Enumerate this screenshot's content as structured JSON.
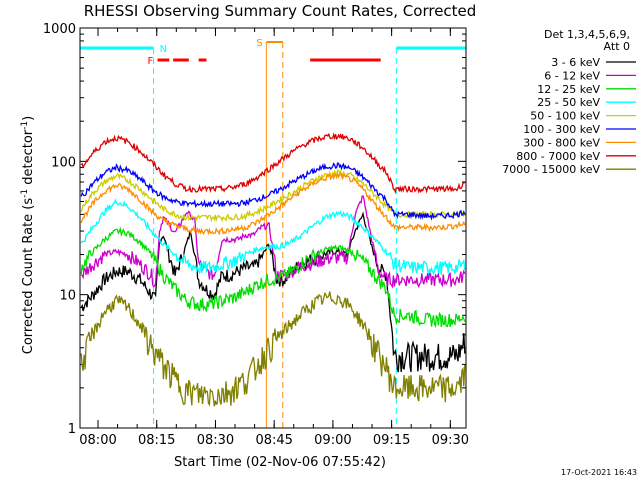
{
  "chart_data": {
    "type": "line",
    "title": "RHESSI Observing Summary Count Rates, Corrected",
    "xlabel": "Start Time (02-Nov-06 07:55:42)",
    "ylabel_main": "Corrected Count Rate (s",
    "ylabel_sup1": "-1",
    "ylabel_mid": " detector",
    "ylabel_sup2": "-1",
    "ylabel_end": ")",
    "y_scale": "log",
    "ylim": [
      1,
      1000
    ],
    "xlim_min": [
      -0.3,
      98.3
    ],
    "x_ticks": [
      {
        "min": 4.3,
        "label": "08:00"
      },
      {
        "min": 19.3,
        "label": "08:15"
      },
      {
        "min": 34.3,
        "label": "08:30"
      },
      {
        "min": 49.3,
        "label": "08:45"
      },
      {
        "min": 64.3,
        "label": "09:00"
      },
      {
        "min": 79.3,
        "label": "09:15"
      },
      {
        "min": 94.3,
        "label": "09:30"
      }
    ],
    "y_ticks": [
      {
        "v": 1,
        "label": "1"
      },
      {
        "v": 10,
        "label": "10"
      },
      {
        "v": 100,
        "label": "100"
      },
      {
        "v": 1000,
        "label": "1000"
      }
    ],
    "legend_header": [
      "Det 1,3,4,5,6,9,",
      "Att 0"
    ],
    "series": [
      {
        "name": "3 - 6 keV",
        "color": "#000000",
        "x": [
          0,
          3,
          6,
          9,
          12,
          15,
          18,
          19,
          20,
          21,
          22,
          24,
          26,
          28,
          30,
          32,
          34,
          36,
          38,
          40,
          42,
          44,
          46,
          48,
          50,
          52,
          54,
          56,
          58,
          60,
          62,
          64,
          66,
          68,
          70,
          72,
          74,
          76,
          78,
          80,
          84,
          88,
          92,
          96,
          98
        ],
        "y": [
          8,
          10,
          13,
          15,
          15,
          13,
          10,
          9,
          25,
          28,
          22,
          14,
          20,
          30,
          13,
          11,
          10,
          14,
          14,
          15,
          16,
          16,
          19,
          24,
          13,
          13,
          15,
          17,
          18,
          19,
          20,
          21,
          21,
          20,
          30,
          40,
          24,
          16,
          14,
          3.5,
          3.5,
          3.5,
          3.5,
          3.5,
          4.5
        ]
      },
      {
        "name": "6 - 12 keV",
        "color": "#cc00cc",
        "x": [
          0,
          3,
          6,
          9,
          12,
          15,
          18,
          19,
          20,
          21,
          24,
          27,
          29,
          30,
          32,
          34,
          36,
          38,
          40,
          42,
          44,
          46,
          48,
          50,
          52,
          55,
          58,
          61,
          64,
          66,
          68,
          70,
          72,
          74,
          76,
          78,
          80,
          84,
          88,
          92,
          96,
          98
        ],
        "y": [
          14,
          17,
          20,
          21,
          20,
          17,
          14,
          12,
          30,
          38,
          29,
          42,
          36,
          17,
          15,
          14,
          26,
          26,
          26,
          28,
          28,
          32,
          33,
          14,
          14,
          16,
          17,
          18,
          19,
          19,
          19,
          40,
          55,
          28,
          15,
          13,
          13,
          13,
          13,
          13,
          13,
          14
        ]
      },
      {
        "name": "12 - 25 keV",
        "color": "#00dd00",
        "x": [
          0,
          3,
          6,
          9,
          12,
          15,
          18,
          21,
          24,
          27,
          30,
          33,
          36,
          39,
          42,
          45,
          48,
          51,
          54,
          57,
          60,
          63,
          66,
          69,
          72,
          75,
          78,
          80,
          84,
          88,
          92,
          96,
          98
        ],
        "y": [
          16,
          21,
          26,
          30,
          29,
          25,
          20,
          14,
          11,
          9,
          8.5,
          8.5,
          9,
          9.5,
          10.5,
          12,
          13,
          13.5,
          15,
          18,
          20,
          22,
          22.5,
          21,
          18,
          14,
          11,
          7,
          7,
          6.5,
          6.5,
          6.5,
          7
        ]
      },
      {
        "name": "25 - 50 keV",
        "color": "#00ffff",
        "x": [
          0,
          3,
          6,
          9,
          12,
          15,
          18,
          21,
          24,
          27,
          30,
          33,
          36,
          39,
          42,
          45,
          48,
          51,
          54,
          57,
          60,
          63,
          66,
          69,
          72,
          75,
          78,
          80,
          84,
          88,
          92,
          96,
          98
        ],
        "y": [
          24,
          32,
          42,
          50,
          46,
          38,
          30,
          24,
          20,
          17,
          16,
          16,
          17,
          18,
          20,
          22,
          23,
          23,
          25,
          29,
          34,
          39,
          41,
          38,
          32,
          26,
          21,
          17,
          16,
          16,
          16,
          16,
          17
        ]
      },
      {
        "name": "50 - 100 keV",
        "color": "#cccc00",
        "x": [
          0,
          3,
          6,
          9,
          12,
          15,
          18,
          21,
          24,
          27,
          30,
          33,
          36,
          39,
          42,
          45,
          48,
          51,
          54,
          57,
          60,
          63,
          66,
          69,
          72,
          75,
          78,
          80,
          84,
          88,
          92,
          96,
          98
        ],
        "y": [
          44,
          58,
          70,
          78,
          72,
          62,
          52,
          44,
          40,
          38,
          38,
          38,
          38,
          38,
          39,
          42,
          46,
          52,
          58,
          66,
          74,
          80,
          82,
          78,
          68,
          56,
          46,
          40,
          40,
          40,
          40,
          40,
          41
        ]
      },
      {
        "name": "100 - 300 keV",
        "color": "#0000ff",
        "x": [
          0,
          3,
          6,
          9,
          12,
          15,
          18,
          21,
          24,
          27,
          30,
          33,
          36,
          39,
          42,
          45,
          48,
          51,
          54,
          57,
          60,
          63,
          66,
          69,
          72,
          75,
          78,
          80,
          84,
          88,
          92,
          96,
          98
        ],
        "y": [
          54,
          68,
          82,
          90,
          85,
          74,
          62,
          54,
          50,
          48,
          48,
          48,
          48,
          48,
          49,
          52,
          56,
          62,
          70,
          78,
          86,
          92,
          93,
          88,
          76,
          62,
          51,
          40,
          40,
          39,
          39,
          40,
          42
        ]
      },
      {
        "name": "300 - 800 keV",
        "color": "#ff8c00",
        "x": [
          0,
          3,
          6,
          9,
          12,
          15,
          18,
          21,
          24,
          27,
          30,
          33,
          36,
          39,
          42,
          45,
          48,
          51,
          54,
          57,
          60,
          63,
          66,
          69,
          72,
          75,
          78,
          80,
          84,
          88,
          92,
          96,
          98
        ],
        "y": [
          36,
          48,
          60,
          66,
          62,
          52,
          42,
          36,
          33,
          31,
          30,
          30,
          30,
          31,
          32,
          35,
          40,
          46,
          54,
          62,
          70,
          76,
          78,
          73,
          62,
          48,
          38,
          32,
          32,
          32,
          32,
          33,
          34
        ]
      },
      {
        "name": "800 - 7000 keV",
        "color": "#dd0000",
        "x": [
          0,
          3,
          6,
          9,
          12,
          15,
          18,
          21,
          24,
          27,
          30,
          33,
          36,
          39,
          42,
          45,
          48,
          51,
          54,
          57,
          60,
          63,
          66,
          69,
          72,
          75,
          78,
          80,
          84,
          88,
          92,
          96,
          98
        ],
        "y": [
          90,
          115,
          140,
          150,
          140,
          120,
          98,
          80,
          68,
          62,
          62,
          62,
          62,
          64,
          68,
          76,
          88,
          102,
          118,
          134,
          146,
          154,
          155,
          146,
          126,
          102,
          82,
          62,
          62,
          62,
          62,
          62,
          70
        ]
      },
      {
        "name": "7000 - 15000 keV",
        "color": "#808000",
        "x": [
          0,
          3,
          6,
          9,
          12,
          15,
          18,
          21,
          24,
          27,
          30,
          33,
          36,
          39,
          42,
          45,
          48,
          51,
          54,
          57,
          60,
          63,
          66,
          69,
          72,
          75,
          78,
          80,
          84,
          88,
          92,
          96,
          98
        ],
        "y": [
          3,
          5,
          7.5,
          9,
          8,
          6,
          4,
          3,
          2.3,
          1.9,
          1.8,
          1.8,
          1.8,
          2,
          2.3,
          3,
          4,
          5,
          6.2,
          7.5,
          8.8,
          9.5,
          9.4,
          8,
          6,
          4,
          2.8,
          2,
          2,
          2,
          2,
          2,
          2.5
        ]
      }
    ],
    "flags": {
      "saa_left_label": "",
      "night_label": "N",
      "flare_label": "F",
      "saa_label": "S",
      "night_bars": [
        [
          -0.3,
          18.5
        ],
        [
          80.5,
          98.3
        ]
      ],
      "flare_bars": [
        [
          19.5,
          22.5
        ],
        [
          23.5,
          27.5
        ],
        [
          30.0,
          32.0
        ],
        [
          58.5,
          76.5
        ]
      ],
      "saa_bar": [
        47.3,
        51.5
      ],
      "vlines_cyan": [
        18.5,
        80.5,
        98.3
      ],
      "vlines_orange_solid": [
        47.3
      ],
      "vlines_orange_dash": [
        51.5
      ],
      "note": ""
    }
  },
  "timestamp": "17-Oct-2021 16:43"
}
